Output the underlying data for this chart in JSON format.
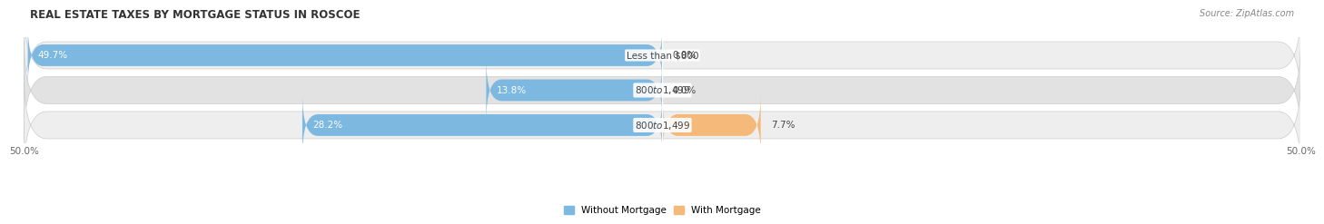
{
  "title": "REAL ESTATE TAXES BY MORTGAGE STATUS IN ROSCOE",
  "source": "Source: ZipAtlas.com",
  "categories": [
    "Less than $800",
    "$800 to $1,499",
    "$800 to $1,499"
  ],
  "without_mortgage": [
    49.7,
    13.8,
    28.2
  ],
  "with_mortgage": [
    0.0,
    0.0,
    7.7
  ],
  "blue_color": "#7cb8e0",
  "orange_color": "#f5b97a",
  "row_bg_colors": [
    "#eeeeee",
    "#e2e2e2",
    "#eeeeee"
  ],
  "xlim": [
    -50,
    50
  ],
  "xticklabels": [
    "50.0%",
    "50.0%"
  ],
  "title_fontsize": 8.5,
  "source_fontsize": 7,
  "label_fontsize": 7.5,
  "pct_fontsize": 7.5,
  "tick_fontsize": 7.5,
  "legend_fontsize": 7.5,
  "bar_height": 0.62
}
